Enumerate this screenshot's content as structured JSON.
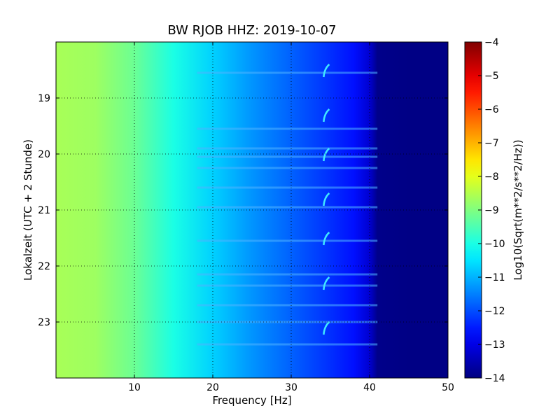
{
  "chart_data": {
    "type": "heatmap",
    "title": "BW RJOB HHZ: 2019-10-07",
    "xlabel": "Frequency [Hz]",
    "ylabel": "Lokalzeit (UTC + 2 Stunde)",
    "colorbar_label": "Log10(Sqrt(m**2/s**2/Hz))",
    "xlim": [
      0,
      50
    ],
    "ylim": [
      24,
      18
    ],
    "clim": [
      -14,
      -4
    ],
    "x_ticks": [
      10,
      20,
      30,
      40,
      50
    ],
    "x_tick_labels": [
      "10",
      "20",
      "30",
      "40",
      "50"
    ],
    "y_ticks": [
      19,
      20,
      21,
      22,
      23
    ],
    "y_tick_labels": [
      "19",
      "20",
      "21",
      "22",
      "23"
    ],
    "colorbar_ticks": [
      -4,
      -5,
      -6,
      -7,
      -8,
      -9,
      -10,
      -11,
      -12,
      -13,
      -14
    ],
    "colorbar_tick_labels": [
      "−4",
      "−5",
      "−6",
      "−7",
      "−8",
      "−9",
      "−10",
      "−11",
      "−12",
      "−13",
      "−14"
    ],
    "grid": true,
    "colormap": "jet",
    "frequency_profile": {
      "frequency_hz": [
        0,
        5,
        10,
        15,
        20,
        25,
        30,
        35,
        38,
        40,
        41,
        45,
        50
      ],
      "log10_psd": [
        -8.6,
        -8.7,
        -9.2,
        -10.0,
        -10.7,
        -11.3,
        -11.8,
        -12.3,
        -12.6,
        -13.2,
        -13.9,
        -13.95,
        -13.95
      ]
    },
    "annotations": {
      "repeating_feature_frequency_hz": 34.5,
      "repeating_feature_times": [
        18.5,
        19.3,
        20.0,
        20.8,
        21.5,
        22.3,
        23.1
      ]
    },
    "horizontal_bands_times": [
      18.55,
      19.55,
      19.9,
      20.05,
      20.25,
      20.6,
      20.95,
      21.55,
      22.15,
      22.35,
      22.7,
      23.0,
      23.4
    ]
  }
}
